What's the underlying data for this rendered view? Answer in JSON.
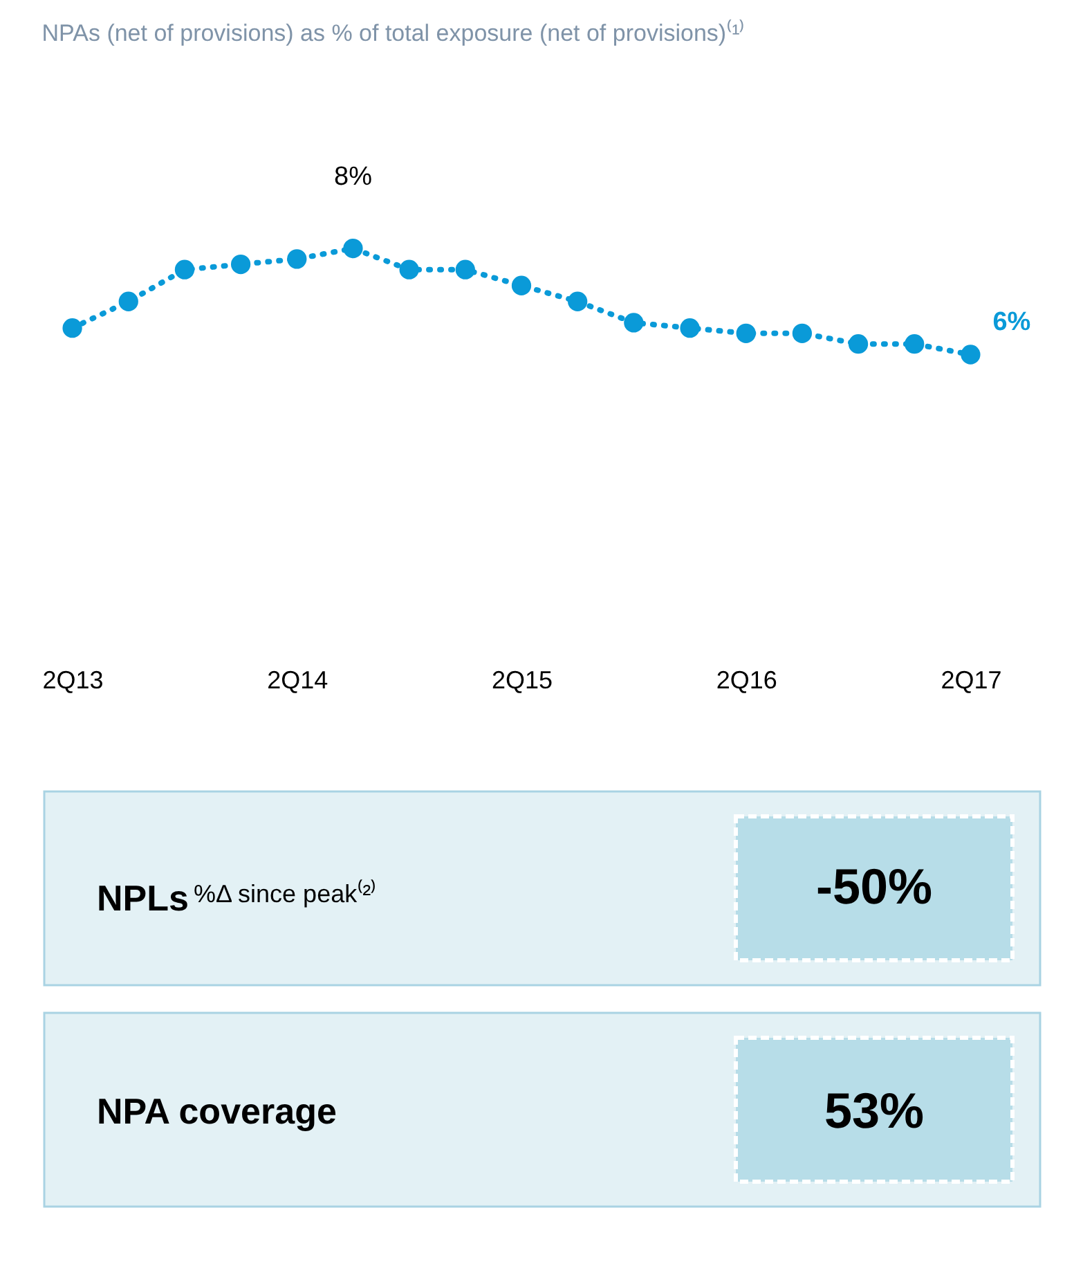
{
  "chart_data": [
    {
      "type": "line",
      "title": "NPAs (net of provisions) as % of total exposure (net of provisions)⁽¹⁾",
      "marker": "circle",
      "line_style": "dotted",
      "grid": false,
      "categories": [
        "2Q13",
        null,
        null,
        null,
        "2Q14",
        null,
        null,
        null,
        "2Q15",
        null,
        null,
        null,
        "2Q16",
        null,
        null,
        null,
        "2Q17"
      ],
      "series": [
        {
          "color": "#0a9ad8",
          "values": [
            6.5,
            7.0,
            7.6,
            7.7,
            7.8,
            8,
            7.6,
            7.6,
            7.3,
            7.0,
            6.6,
            6.5,
            6.4,
            6.4,
            6.2,
            6.2,
            6
          ],
          "value_labels": [
            null,
            null,
            null,
            null,
            null,
            "8%",
            null,
            null,
            null,
            null,
            null,
            null,
            null,
            null,
            null,
            null,
            "6%"
          ]
        }
      ]
    },
    {
      "type": "other",
      "annotations": [
        "NPLs",
        "%Δ since peak⁽²⁾",
        "-50%",
        "NPA coverage",
        "53%"
      ]
    }
  ]
}
